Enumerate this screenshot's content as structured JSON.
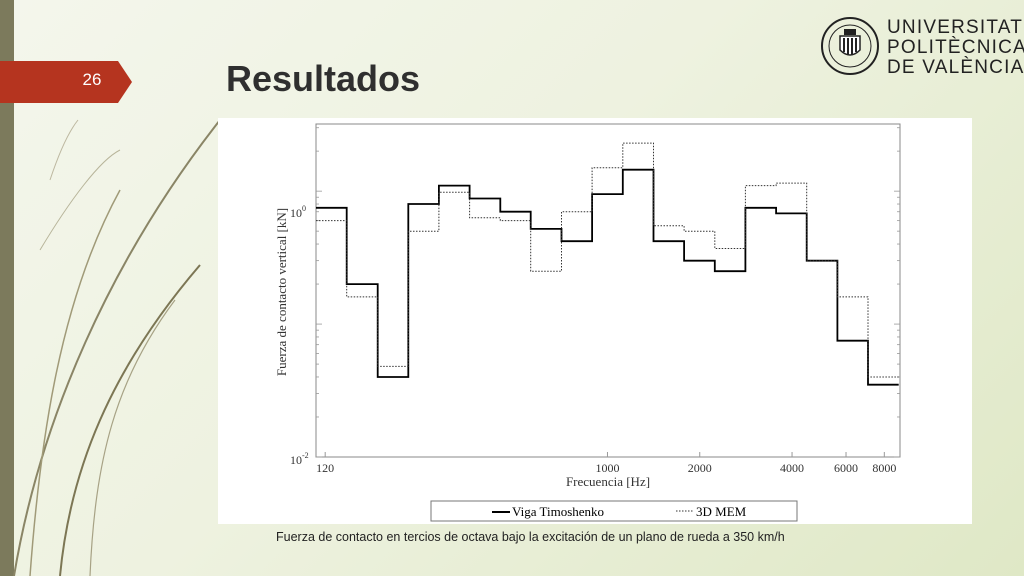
{
  "slide": {
    "number": "26",
    "title": "Resultados",
    "caption": "Fuerza de contacto en tercios de octava bajo la excitación de un plano de rueda a 350 km/h",
    "accent": "#b5341f",
    "bar_color": "#7c7a5c"
  },
  "logo": {
    "line1": "UNIVERSITAT",
    "line2": "POLITÈCNICA",
    "line3": "DE VALÈNCIA"
  },
  "chart_data": {
    "type": "line",
    "subtype": "stepped",
    "xlabel": "Frecuencia [Hz]",
    "ylabel": "Fuerza de contacto vertical [kN]",
    "x_scale": "log",
    "y_scale": "log",
    "xlim": [
      112,
      9000
    ],
    "ylim": [
      0.01,
      3.2
    ],
    "x_ticks": [
      120,
      1000,
      2000,
      4000,
      6000,
      8000
    ],
    "x_tick_labels": [
      "120",
      "1000",
      "2000",
      "4000",
      "6000",
      "8000"
    ],
    "y_tick_labels": [
      "10^0",
      "10^-2"
    ],
    "legend_position": "bottom",
    "band_edges": [
      112,
      141,
      178,
      224,
      282,
      355,
      447,
      562,
      708,
      891,
      1122,
      1413,
      1778,
      2239,
      2818,
      3548,
      4467,
      5623,
      7079,
      8913
    ],
    "series": [
      {
        "name": "Viga Timoshenko",
        "style": "solid",
        "values": [
          0.75,
          0.2,
          0.04,
          0.8,
          1.1,
          0.88,
          0.7,
          0.52,
          0.42,
          0.95,
          1.45,
          0.42,
          0.3,
          0.25,
          0.75,
          0.68,
          0.3,
          0.075,
          0.035
        ]
      },
      {
        "name": "3D MEM",
        "style": "dotted",
        "values": [
          0.6,
          0.16,
          0.048,
          0.5,
          0.98,
          0.63,
          0.6,
          0.25,
          0.7,
          1.5,
          2.3,
          0.55,
          0.5,
          0.37,
          1.1,
          1.15,
          0.3,
          0.16,
          0.04
        ]
      }
    ]
  }
}
